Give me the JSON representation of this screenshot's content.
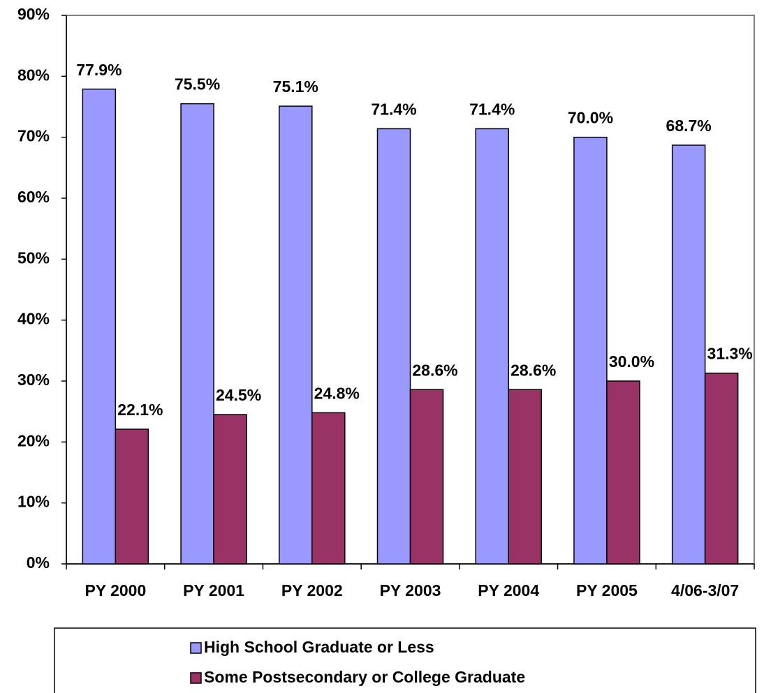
{
  "chart_data": {
    "type": "bar",
    "categories": [
      "PY 2000",
      "PY 2001",
      "PY 2002",
      "PY 2003",
      "PY 2004",
      "PY 2005",
      "4/06-3/07"
    ],
    "series": [
      {
        "name": "High School Graduate or Less",
        "color": "#9999ff",
        "values": [
          77.9,
          75.5,
          75.1,
          71.4,
          71.4,
          70.0,
          68.7
        ],
        "value_labels": [
          "77.9%",
          "75.5%",
          "75.1%",
          "71.4%",
          "71.4%",
          "70.0%",
          "68.7%"
        ]
      },
      {
        "name": "Some Postsecondary or College Graduate",
        "color": "#993366",
        "values": [
          22.1,
          24.5,
          24.8,
          28.6,
          28.6,
          30.0,
          31.3
        ],
        "value_labels": [
          "22.1%",
          "24.5%",
          "24.8%",
          "28.6%",
          "28.6%",
          "30.0%",
          "31.3%"
        ]
      }
    ],
    "ylim": [
      0,
      90
    ],
    "yticks": [
      {
        "value": 0,
        "label": "0%"
      },
      {
        "value": 10,
        "label": "10%"
      },
      {
        "value": 20,
        "label": "20%"
      },
      {
        "value": 30,
        "label": "30%"
      },
      {
        "value": 40,
        "label": "40%"
      },
      {
        "value": 50,
        "label": "50%"
      },
      {
        "value": 60,
        "label": "60%"
      },
      {
        "value": 70,
        "label": "70%"
      },
      {
        "value": 80,
        "label": "80%"
      },
      {
        "value": 90,
        "label": "90%"
      }
    ],
    "grid": false
  }
}
